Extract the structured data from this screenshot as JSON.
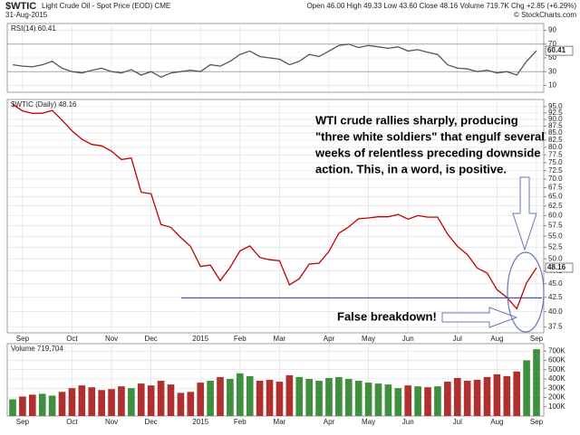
{
  "header": {
    "symbol": "$WTIC",
    "name": "Light Crude Oil - Spot Price (EOD) CME",
    "date": "31-Aug-2015",
    "quote": "Open 46.00 High 49.33 Low 43.60 Close 48.16 Volume 719.7K Chg +2.85 (+6.29%)",
    "brand": "© StockCharts.com"
  },
  "chart_data": [
    {
      "type": "line",
      "title": "RSI(14) 60.41",
      "last_label": "60.41",
      "color": "#555555",
      "ylim": [
        0,
        100
      ],
      "yticks": [
        10,
        30,
        50,
        70,
        90
      ],
      "grid": true,
      "values": [
        40,
        38,
        37,
        40,
        45,
        35,
        30,
        28,
        32,
        35,
        30,
        28,
        33,
        25,
        30,
        22,
        28,
        30,
        32,
        30,
        40,
        38,
        45,
        55,
        60,
        52,
        50,
        48,
        40,
        45,
        55,
        52,
        60,
        68,
        70,
        65,
        68,
        66,
        64,
        66,
        60,
        62,
        58,
        55,
        40,
        35,
        34,
        30,
        32,
        28,
        30,
        25,
        45,
        60.41
      ]
    },
    {
      "type": "line",
      "title": "$WTIC (Daily) 48.16",
      "last_label": "48.16",
      "color": "#c00000",
      "log_scale": true,
      "ylim": [
        36.6,
        97.9
      ],
      "grid": true,
      "yticks": [
        {
          "value": 95,
          "label": "95.0"
        },
        {
          "value": 92.5,
          "label": "92.5"
        },
        {
          "value": 90,
          "label": "90.0"
        },
        {
          "value": 87.5,
          "label": "87.5"
        },
        {
          "value": 85,
          "label": "85.0"
        },
        {
          "value": 82.5,
          "label": "82.5"
        },
        {
          "value": 80,
          "label": "80.0"
        },
        {
          "value": 77.5,
          "label": "77.5"
        },
        {
          "value": 75,
          "label": "75.0"
        },
        {
          "value": 72.5,
          "label": "72.5"
        },
        {
          "value": 70,
          "label": "70.0"
        },
        {
          "value": 67.5,
          "label": "67.5"
        },
        {
          "value": 65,
          "label": "65.0"
        },
        {
          "value": 62.5,
          "label": "62.5"
        },
        {
          "value": 60,
          "label": "60.0"
        },
        {
          "value": 57.5,
          "label": "57.5"
        },
        {
          "value": 55,
          "label": "55.0"
        },
        {
          "value": 52.5,
          "label": "52.5"
        },
        {
          "value": 50,
          "label": "50.0"
        },
        {
          "value": 47.5,
          "label": "47.5"
        },
        {
          "value": 45,
          "label": "45.0"
        },
        {
          "value": 42.5,
          "label": "42.5"
        },
        {
          "value": 40,
          "label": "40.0"
        },
        {
          "value": 37.5,
          "label": "37.5"
        }
      ],
      "categories": [
        null,
        "Sep",
        null,
        null,
        null,
        null,
        "Oct",
        null,
        null,
        null,
        "Nov",
        null,
        null,
        null,
        "Dec",
        null,
        null,
        null,
        null,
        "2015",
        null,
        null,
        null,
        "Feb",
        null,
        null,
        null,
        "Mar",
        null,
        null,
        null,
        null,
        "Apr",
        null,
        null,
        null,
        "May",
        null,
        null,
        null,
        "Jun",
        null,
        null,
        null,
        null,
        "Jul",
        null,
        null,
        null,
        "Aug",
        null,
        null,
        null,
        "Sep"
      ],
      "values": [
        95.9,
        93.3,
        92.3,
        92.4,
        93.5,
        89.7,
        85.8,
        82.8,
        81.0,
        80.5,
        78.7,
        76.0,
        76.5,
        66.2,
        65.8,
        57.8,
        57.1,
        54.7,
        52.7,
        48.4,
        48.7,
        45.6,
        48.2,
        51.7,
        52.8,
        50.3,
        49.8,
        49.6,
        44.8,
        46.0,
        48.9,
        49.1,
        51.6,
        55.7,
        57.2,
        59.2,
        59.4,
        59.7,
        59.7,
        60.3,
        59.1,
        60.0,
        59.6,
        59.6,
        55.5,
        52.7,
        50.9,
        48.1,
        47.1,
        43.9,
        42.5,
        40.5,
        45.2,
        48.16
      ],
      "support_level": 42.4,
      "annotations": [
        "WTI crude rallies sharply, producing",
        "\"three white soldiers\" that engulf several",
        "weeks of relentless preceding downside",
        "action. This, in a word, is positive."
      ],
      "callout": "False breakdown!"
    },
    {
      "type": "bar",
      "title": "Volume 719,704",
      "up_color": "#3f8f3f",
      "down_color": "#b03030",
      "ylim": [
        0,
        780000
      ],
      "grid": true,
      "yticks": [
        {
          "value": 100000,
          "label": "100K"
        },
        {
          "value": 200000,
          "label": "200K"
        },
        {
          "value": 300000,
          "label": "300K"
        },
        {
          "value": 400000,
          "label": "400K"
        },
        {
          "value": 500000,
          "label": "500K"
        },
        {
          "value": 600000,
          "label": "600K"
        },
        {
          "value": 700000,
          "label": "700K"
        }
      ],
      "values": [
        180000,
        210000,
        230000,
        240000,
        220000,
        260000,
        300000,
        330000,
        310000,
        280000,
        290000,
        320000,
        300000,
        350000,
        330000,
        380000,
        340000,
        250000,
        260000,
        360000,
        380000,
        420000,
        400000,
        460000,
        430000,
        380000,
        390000,
        370000,
        440000,
        420000,
        400000,
        380000,
        410000,
        420000,
        400000,
        380000,
        360000,
        350000,
        340000,
        300000,
        330000,
        320000,
        310000,
        320000,
        370000,
        410000,
        380000,
        390000,
        420000,
        450000,
        430000,
        480000,
        600000,
        719704
      ]
    }
  ]
}
